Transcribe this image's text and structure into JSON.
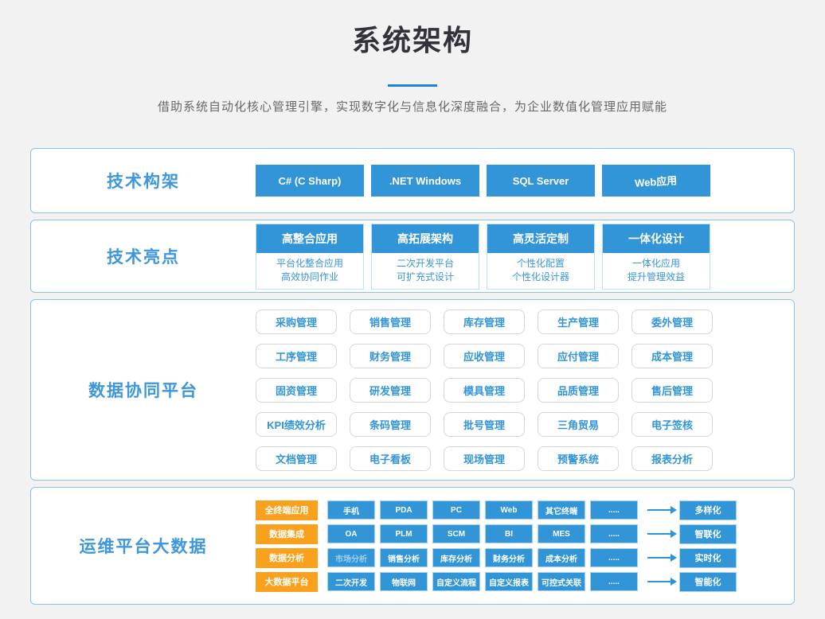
{
  "page": {
    "title": "系统架构",
    "subtitle": "借助系统自动化核心管理引擎，实现数字化与信息化深度融合，为企业数值化管理应用赋能"
  },
  "colors": {
    "accent_blue": "#3195d8",
    "divider_blue": "#1b82e3",
    "label_blue": "#3e97dd",
    "orange": "#f9a11c"
  },
  "sections": {
    "tech_stack": {
      "label": "技术构架",
      "buttons": [
        "C# (C Sharp)",
        ".NET Windows",
        "SQL Server",
        "Web应用"
      ]
    },
    "highlights": {
      "label": "技术亮点",
      "cards": [
        {
          "title": "高整合应用",
          "line1": "平台化整合应用",
          "line2": "高效协同作业"
        },
        {
          "title": "高拓展架构",
          "line1": "二次开发平台",
          "line2": "可扩充式设计"
        },
        {
          "title": "高灵活定制",
          "line1": "个性化配置",
          "line2": "个性化设计器"
        },
        {
          "title": "一体化设计",
          "line1": "一体化应用",
          "line2": "提升管理效益"
        }
      ]
    },
    "platform": {
      "label": "数据协同平台",
      "modules": [
        "采购管理",
        "销售管理",
        "库存管理",
        "生产管理",
        "委外管理",
        "工序管理",
        "财务管理",
        "应收管理",
        "应付管理",
        "成本管理",
        "固资管理",
        "研发管理",
        "模具管理",
        "品质管理",
        "售后管理",
        "KPI绩效分析",
        "条码管理",
        "批号管理",
        "三角贸易",
        "电子签核",
        "文档管理",
        "电子看板",
        "现场管理",
        "预警系统",
        "报表分析"
      ]
    },
    "bigdata": {
      "label": "运维平台大数据",
      "rows": [
        {
          "category": "全终端应用",
          "items": [
            "手机",
            "PDA",
            "PC",
            "Web",
            "其它终端",
            "....."
          ],
          "result": "多样化"
        },
        {
          "category": "数据集成",
          "items": [
            "OA",
            "PLM",
            "SCM",
            "BI",
            "MES",
            "....."
          ],
          "result": "智联化"
        },
        {
          "category": "数据分析",
          "items": [
            "市场分析",
            "销售分析",
            "库存分析",
            "财务分析",
            "成本分析",
            "....."
          ],
          "result": "实时化"
        },
        {
          "category": "大数据平台",
          "items": [
            "二次开发",
            "物联网",
            "自定义流程",
            "自定义报表",
            "可控式关联",
            "....."
          ],
          "result": "智能化"
        }
      ]
    }
  }
}
